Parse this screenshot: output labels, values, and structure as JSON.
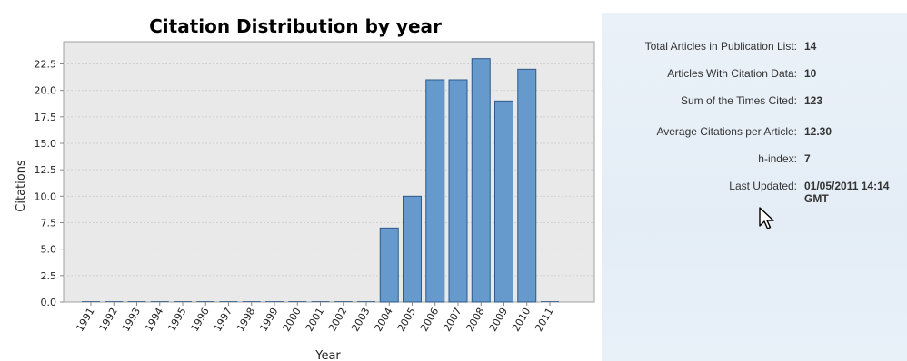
{
  "chart_data": {
    "type": "bar",
    "title": "Citation Distribution by year",
    "xlabel": "Year",
    "ylabel": "Citations",
    "categories": [
      "1991",
      "1992",
      "1993",
      "1994",
      "1995",
      "1996",
      "1997",
      "1998",
      "1999",
      "2000",
      "2001",
      "2002",
      "2003",
      "2004",
      "2005",
      "2006",
      "2007",
      "2008",
      "2009",
      "2010",
      "2011"
    ],
    "values": [
      0,
      0,
      0,
      0,
      0,
      0,
      0,
      0,
      0,
      0,
      0,
      0,
      0,
      7,
      10,
      21,
      21,
      23,
      19,
      22,
      0
    ],
    "ylim": [
      0,
      24.6
    ],
    "yticks": [
      0.0,
      2.5,
      5.0,
      7.5,
      10.0,
      12.5,
      15.0,
      17.5,
      20.0,
      22.5
    ],
    "grid": true,
    "colors": {
      "bar_fill": "#6699cc",
      "bar_stroke": "#2f5a8a",
      "plot_bg": "#e9e9e9",
      "grid": "#d0d0d0"
    }
  },
  "stats_panel": {
    "rows": [
      {
        "label": "Total Articles in Publication List:",
        "value": "14"
      },
      {
        "label": "Articles With Citation Data:",
        "value": "10"
      },
      {
        "label": "Sum of the Times Cited:",
        "value": "123"
      },
      {
        "label": "Average Citations per Article:",
        "value": "12.30"
      },
      {
        "label": "h-index:",
        "value": "7"
      },
      {
        "label": "Last Updated:",
        "value": "01/05/2011 14:14 GMT"
      }
    ]
  },
  "icons": {
    "cursor": "mouse-pointer-icon"
  }
}
